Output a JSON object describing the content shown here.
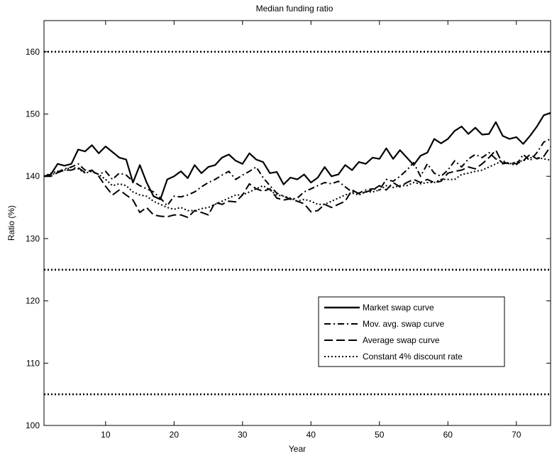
{
  "chart_data": {
    "type": "line",
    "title": "Median funding ratio",
    "xlabel": "Year",
    "ylabel": "Ratio (%)",
    "xlim": [
      1,
      75
    ],
    "ylim": [
      100,
      165
    ],
    "xticks": [
      10,
      20,
      30,
      40,
      50,
      60,
      70
    ],
    "yticks": [
      100,
      110,
      120,
      130,
      140,
      150,
      160
    ],
    "grid": false,
    "legend_position": "lower-right",
    "reference_lines": [
      {
        "y": 160,
        "style": "dotted"
      },
      {
        "y": 125,
        "style": "dotted"
      },
      {
        "y": 105,
        "style": "dotted"
      }
    ],
    "series": [
      {
        "name": "Market swap curve",
        "style": "solid",
        "x": [
          1,
          2,
          3,
          4,
          5,
          6,
          7,
          8,
          9,
          10,
          11,
          12,
          13,
          14,
          15,
          16,
          17,
          18,
          19,
          20,
          21,
          22,
          23,
          24,
          25,
          26,
          27,
          28,
          29,
          30,
          31,
          32,
          33,
          34,
          35,
          36,
          37,
          38,
          39,
          40,
          41,
          42,
          43,
          44,
          45,
          46,
          47,
          48,
          49,
          50,
          51,
          52,
          53,
          54,
          55,
          56,
          57,
          58,
          59,
          60,
          61,
          62,
          63,
          64,
          65,
          66,
          67,
          68,
          69,
          70,
          71,
          72,
          73,
          74,
          75
        ],
        "values": [
          140.0,
          140.3,
          142.0,
          141.7,
          142.0,
          144.3,
          144.0,
          145.0,
          143.7,
          144.8,
          143.9,
          143.0,
          142.7,
          139.0,
          141.8,
          139.0,
          136.8,
          136.3,
          139.5,
          140.0,
          140.8,
          139.7,
          141.8,
          140.5,
          141.5,
          141.8,
          143.0,
          143.5,
          142.5,
          142.0,
          143.7,
          142.7,
          142.3,
          140.5,
          140.7,
          138.7,
          139.8,
          139.5,
          140.3,
          139.0,
          139.8,
          141.5,
          140.0,
          140.3,
          141.8,
          141.0,
          142.3,
          142.0,
          143.0,
          142.8,
          144.5,
          142.8,
          144.2,
          143.0,
          141.8,
          143.3,
          143.8,
          146.0,
          145.3,
          146.0,
          147.3,
          148.0,
          146.8,
          147.8,
          146.7,
          146.8,
          148.7,
          146.5,
          146.0,
          146.3,
          145.2,
          146.5,
          148.0,
          149.8,
          150.2
        ]
      },
      {
        "name": "Mov. avg. swap curve",
        "style": "dashdot",
        "x": [
          1,
          2,
          3,
          4,
          5,
          6,
          7,
          8,
          9,
          10,
          11,
          12,
          13,
          14,
          15,
          16,
          17,
          18,
          19,
          20,
          21,
          22,
          23,
          24,
          25,
          26,
          27,
          28,
          29,
          30,
          31,
          32,
          33,
          34,
          35,
          36,
          37,
          38,
          39,
          40,
          41,
          42,
          43,
          44,
          45,
          46,
          47,
          48,
          49,
          50,
          51,
          52,
          53,
          54,
          55,
          56,
          57,
          58,
          59,
          60,
          61,
          62,
          63,
          64,
          65,
          66,
          67,
          68,
          69,
          70,
          71,
          72,
          73,
          74,
          75
        ],
        "values": [
          140.0,
          140.2,
          140.7,
          141.2,
          141.5,
          142.0,
          141.0,
          140.8,
          140.3,
          140.8,
          139.5,
          140.5,
          140.2,
          139.2,
          138.5,
          138.0,
          137.5,
          136.5,
          135.3,
          136.8,
          136.7,
          137.0,
          137.5,
          138.3,
          139.0,
          139.5,
          140.2,
          140.8,
          139.5,
          140.2,
          140.8,
          141.5,
          139.8,
          138.5,
          137.3,
          136.8,
          136.3,
          136.5,
          137.5,
          138.0,
          138.5,
          139.0,
          138.8,
          139.2,
          138.3,
          137.5,
          137.3,
          137.8,
          138.0,
          137.8,
          139.5,
          139.2,
          140.0,
          141.0,
          142.2,
          140.0,
          142.0,
          140.5,
          140.0,
          141.0,
          142.5,
          141.5,
          142.8,
          143.5,
          143.0,
          143.8,
          142.8,
          142.3,
          142.0,
          141.8,
          143.5,
          142.5,
          143.8,
          145.5,
          146.0
        ]
      },
      {
        "name": "Average swap curve",
        "style": "dashed",
        "x": [
          1,
          2,
          3,
          4,
          5,
          6,
          7,
          8,
          9,
          10,
          11,
          12,
          13,
          14,
          15,
          16,
          17,
          18,
          19,
          20,
          21,
          22,
          23,
          24,
          25,
          26,
          27,
          28,
          29,
          30,
          31,
          32,
          33,
          34,
          35,
          36,
          37,
          38,
          39,
          40,
          41,
          42,
          43,
          44,
          45,
          46,
          47,
          48,
          49,
          50,
          51,
          52,
          53,
          54,
          55,
          56,
          57,
          58,
          59,
          60,
          61,
          62,
          63,
          64,
          65,
          66,
          67,
          68,
          69,
          70,
          71,
          72,
          73,
          74,
          75
        ],
        "values": [
          140.0,
          140.0,
          140.6,
          141.0,
          141.0,
          141.4,
          140.6,
          141.0,
          140.0,
          138.4,
          137.0,
          137.8,
          137.0,
          136.2,
          134.2,
          135.0,
          133.8,
          133.6,
          133.5,
          133.8,
          133.8,
          133.4,
          134.5,
          134.2,
          133.8,
          135.8,
          135.5,
          136.0,
          135.9,
          137.0,
          138.8,
          138.0,
          137.6,
          138.0,
          136.5,
          136.2,
          136.4,
          136.0,
          135.6,
          134.3,
          134.5,
          135.5,
          135.0,
          135.5,
          136.0,
          137.8,
          137.2,
          137.5,
          137.8,
          138.5,
          137.8,
          139.0,
          138.3,
          139.0,
          139.5,
          139.0,
          139.5,
          139.0,
          139.2,
          140.5,
          140.8,
          141.0,
          141.5,
          141.2,
          142.0,
          143.0,
          144.2,
          142.0,
          142.2,
          142.0,
          142.5,
          143.5,
          142.8,
          143.2,
          144.8
        ]
      },
      {
        "name": "Constant 4% discount rate",
        "style": "dotted",
        "x": [
          1,
          2,
          3,
          4,
          5,
          6,
          7,
          8,
          9,
          10,
          11,
          12,
          13,
          14,
          15,
          16,
          17,
          18,
          19,
          20,
          21,
          22,
          23,
          24,
          25,
          26,
          27,
          28,
          29,
          30,
          31,
          32,
          33,
          34,
          35,
          36,
          37,
          38,
          39,
          40,
          41,
          42,
          43,
          44,
          45,
          46,
          47,
          48,
          49,
          50,
          51,
          52,
          53,
          54,
          55,
          56,
          57,
          58,
          59,
          60,
          61,
          62,
          63,
          64,
          65,
          66,
          67,
          68,
          69,
          70,
          71,
          72,
          73,
          74,
          75
        ],
        "values": [
          140.0,
          140.5,
          140.8,
          141.0,
          141.5,
          141.2,
          140.5,
          140.8,
          140.3,
          139.5,
          138.5,
          138.8,
          138.5,
          137.5,
          137.0,
          136.8,
          136.0,
          135.5,
          135.0,
          134.7,
          135.0,
          134.5,
          134.5,
          134.8,
          135.0,
          135.5,
          136.0,
          136.5,
          137.0,
          137.0,
          137.5,
          138.0,
          138.5,
          137.8,
          137.0,
          136.8,
          136.5,
          136.0,
          136.3,
          136.0,
          135.5,
          135.5,
          136.0,
          136.5,
          137.0,
          137.3,
          137.0,
          137.5,
          137.5,
          137.8,
          138.5,
          138.2,
          138.5,
          138.5,
          139.0,
          138.8,
          139.0,
          139.0,
          139.5,
          139.5,
          139.5,
          140.3,
          140.5,
          140.8,
          141.0,
          141.5,
          142.0,
          142.5,
          142.0,
          142.3,
          142.5,
          143.0,
          143.0,
          142.8,
          142.6
        ]
      }
    ]
  }
}
